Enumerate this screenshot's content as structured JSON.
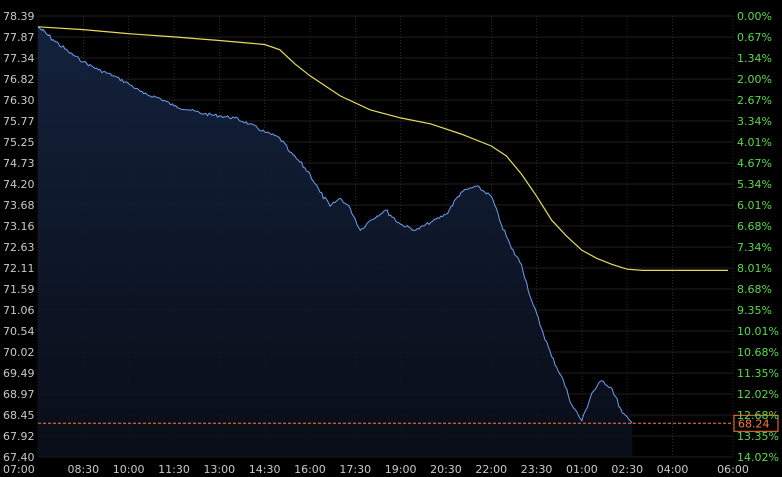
{
  "chart_data": {
    "type": "line",
    "left_axis": {
      "ticks": [
        "78.39",
        "77.87",
        "77.34",
        "76.82",
        "76.30",
        "75.77",
        "75.25",
        "74.73",
        "74.20",
        "73.68",
        "73.16",
        "72.63",
        "72.11",
        "71.59",
        "71.06",
        "70.54",
        "70.02",
        "69.49",
        "68.97",
        "68.45",
        "67.92",
        "67.40"
      ],
      "range": [
        67.4,
        78.39
      ]
    },
    "right_axis": {
      "ticks": [
        "0.00%",
        "0.67%",
        "1.34%",
        "2.00%",
        "2.67%",
        "3.34%",
        "4.01%",
        "4.67%",
        "5.34%",
        "6.01%",
        "6.68%",
        "7.34%",
        "8.01%",
        "8.68%",
        "9.35%",
        "10.01%",
        "10.68%",
        "11.35%",
        "12.02%",
        "12.68%",
        "13.35%",
        "14.02%"
      ]
    },
    "x_ticks": [
      "07:00",
      "08:30",
      "10:00",
      "11:30",
      "13:00",
      "14:30",
      "16:00",
      "17:30",
      "19:00",
      "20:30",
      "22:00",
      "23:30",
      "01:00",
      "02:30",
      "04:00",
      "06:00"
    ],
    "grid": true,
    "current_price": "68.24",
    "colors": {
      "background": "#000000",
      "price_line": "#6f9cf0",
      "average_line": "#e6dc5a",
      "price_marker": "#ff7a30",
      "right_axis_text": "#59d94a"
    },
    "series": [
      {
        "kind": "price",
        "x": [
          "07:00",
          "07:30",
          "08:00",
          "08:30",
          "09:00",
          "09:30",
          "10:00",
          "10:30",
          "11:00",
          "11:30",
          "12:00",
          "12:30",
          "13:00",
          "13:30",
          "14:00",
          "14:30",
          "15:00",
          "15:20",
          "15:40",
          "16:00",
          "16:20",
          "16:40",
          "17:00",
          "17:20",
          "17:40",
          "18:00",
          "18:30",
          "19:00",
          "19:30",
          "20:00",
          "20:30",
          "21:00",
          "21:30",
          "22:00",
          "22:20",
          "22:40",
          "23:00",
          "23:20",
          "23:40",
          "00:00",
          "00:20",
          "00:40",
          "01:00",
          "01:20",
          "01:40",
          "02:00",
          "02:20",
          "02:40"
        ],
        "values": [
          78.12,
          77.8,
          77.5,
          77.25,
          77.05,
          76.9,
          76.7,
          76.45,
          76.35,
          76.15,
          76.05,
          75.95,
          75.9,
          75.85,
          75.7,
          75.5,
          75.35,
          75.0,
          74.75,
          74.45,
          74.0,
          73.65,
          73.85,
          73.6,
          73.05,
          73.3,
          73.55,
          73.2,
          73.05,
          73.25,
          73.45,
          74.0,
          74.15,
          73.9,
          73.2,
          72.6,
          72.2,
          71.3,
          70.6,
          69.9,
          69.4,
          68.7,
          68.3,
          69.0,
          69.3,
          69.1,
          68.5,
          68.24
        ]
      },
      {
        "kind": "average",
        "x": [
          "07:00",
          "08:30",
          "10:00",
          "11:30",
          "13:00",
          "14:30",
          "15:00",
          "15:30",
          "16:00",
          "17:00",
          "18:00",
          "19:00",
          "20:00",
          "21:00",
          "22:00",
          "22:30",
          "23:00",
          "23:30",
          "00:00",
          "00:30",
          "01:00",
          "01:30",
          "02:00",
          "02:30",
          "03:00",
          "04:00",
          "05:00",
          "05:50"
        ],
        "values": [
          78.12,
          78.05,
          77.95,
          77.87,
          77.78,
          77.68,
          77.55,
          77.2,
          76.9,
          76.4,
          76.05,
          75.85,
          75.7,
          75.45,
          75.15,
          74.9,
          74.45,
          73.9,
          73.3,
          72.9,
          72.55,
          72.35,
          72.2,
          72.08,
          72.05,
          72.05,
          72.05,
          72.05
        ]
      }
    ]
  }
}
